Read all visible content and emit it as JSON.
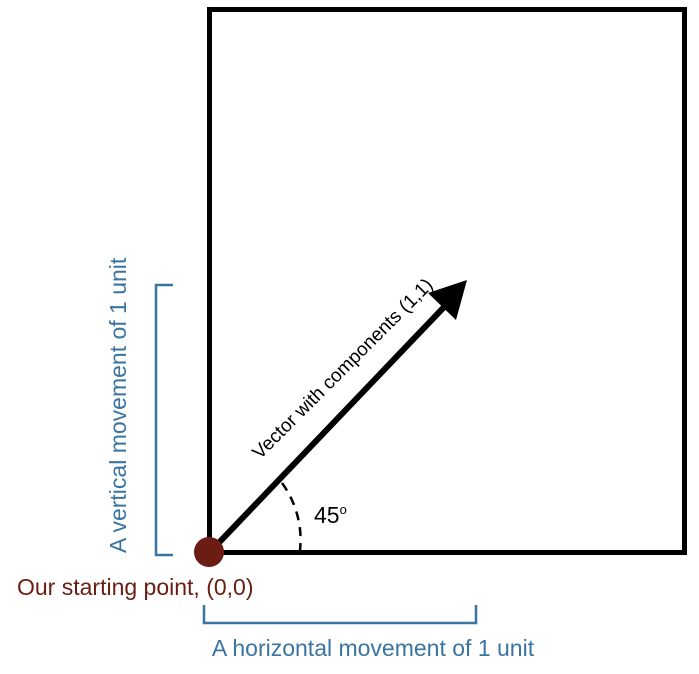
{
  "labels": {
    "vector": "Vector with components (1,1)",
    "angle_value": "45",
    "angle_unit": "o",
    "vertical": "A vertical movement of 1 unit",
    "horizontal": "A horizontal movement of 1 unit",
    "origin": "Our starting point, (0,0)"
  },
  "colors": {
    "frame": "#000000",
    "vector": "#000000",
    "bracket_text": "#3a74a1",
    "origin_point": "#6b1d14",
    "origin_text": "#6b1d14"
  },
  "vector": {
    "x": 1,
    "y": 1,
    "angle_deg": 45
  }
}
